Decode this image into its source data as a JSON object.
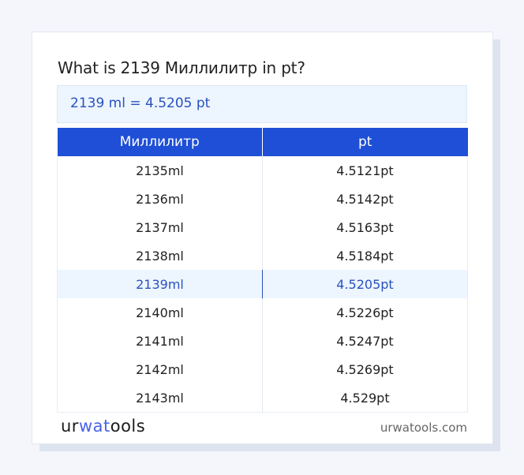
{
  "title": "What is 2139 Миллилитр in pt?",
  "result": "2139 ml = 4.5205 pt",
  "table": {
    "headers": [
      "Миллилитр",
      "pt"
    ],
    "rows": [
      [
        "2135ml",
        "4.5121pt"
      ],
      [
        "2136ml",
        "4.5142pt"
      ],
      [
        "2137ml",
        "4.5163pt"
      ],
      [
        "2138ml",
        "4.5184pt"
      ],
      [
        "2139ml",
        "4.5205pt"
      ],
      [
        "2140ml",
        "4.5226pt"
      ],
      [
        "2141ml",
        "4.5247pt"
      ],
      [
        "2142ml",
        "4.5269pt"
      ],
      [
        "2143ml",
        "4.529pt"
      ]
    ],
    "highlighted_row": 4
  },
  "footer": {
    "logo": {
      "part1": "ur",
      "part2": "wat",
      "part3": "ools"
    },
    "site": "urwatools.com"
  },
  "colors": {
    "accent": "#1e4fd6",
    "highlight_text": "#2a52be",
    "highlight_bg": "#edf5fe"
  }
}
